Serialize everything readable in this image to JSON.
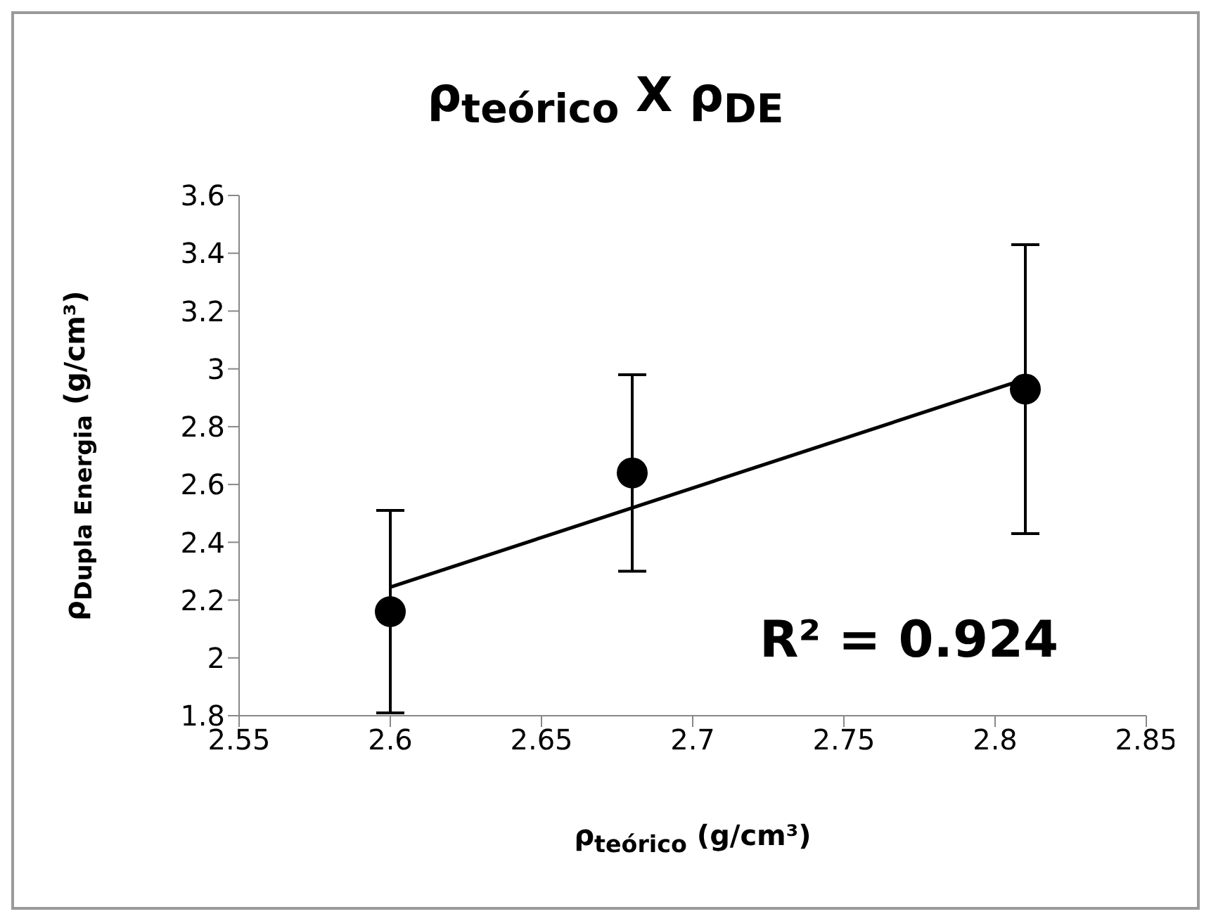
{
  "chart_data": {
    "type": "scatter",
    "title": "ρ$_{teórico}$ X ρ$_{DE}$",
    "xlabel": "ρ$_{teórico}$ (g/cm³)",
    "ylabel": "ρ$_{Dupla Energia}$ (g/cm³)",
    "series": [
      {
        "color": "#000000",
        "x": [
          2.6,
          2.68,
          2.81
        ],
        "values": [
          2.16,
          2.64,
          2.93
        ],
        "errors": [
          0.35,
          0.34,
          0.5
        ]
      },
      {
        "type": "line",
        "color": "#000000",
        "marker": "none",
        "x": [
          2.6,
          2.81
        ],
        "values": [
          2.245,
          2.965
        ]
      }
    ],
    "xlim": [
      2.55,
      2.85
    ],
    "xticks": [
      2.55,
      2.6,
      2.65,
      2.7,
      2.75,
      2.8,
      2.85
    ],
    "ylim": [
      1.8,
      3.6
    ],
    "yticks": [
      1.8,
      2,
      2.2,
      2.4,
      2.6,
      2.8,
      3,
      3.2,
      3.4,
      3.6
    ],
    "marker": "circle",
    "grid": false,
    "legend": false,
    "annotations": [
      "R² = 0.924"
    ]
  }
}
